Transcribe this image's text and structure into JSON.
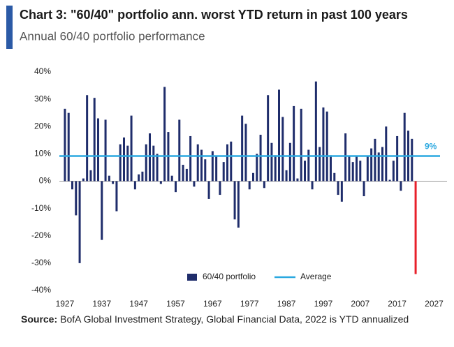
{
  "chart_data": {
    "type": "bar",
    "title": "Chart 3: \"60/40\" portfolio ann. worst YTD return in past 100 years",
    "subtitle": "Annual 60/40 portfolio performance",
    "source": {
      "label": "Source:",
      "text": "BofA Global Investment Strategy, Global Financial Data, 2022 is YTD annualized"
    },
    "x": [
      1927,
      1928,
      1929,
      1930,
      1931,
      1932,
      1933,
      1934,
      1935,
      1936,
      1937,
      1938,
      1939,
      1940,
      1941,
      1942,
      1943,
      1944,
      1945,
      1946,
      1947,
      1948,
      1949,
      1950,
      1951,
      1952,
      1953,
      1954,
      1955,
      1956,
      1957,
      1958,
      1959,
      1960,
      1961,
      1962,
      1963,
      1964,
      1965,
      1966,
      1967,
      1968,
      1969,
      1970,
      1971,
      1972,
      1973,
      1974,
      1975,
      1976,
      1977,
      1978,
      1979,
      1980,
      1981,
      1982,
      1983,
      1984,
      1985,
      1986,
      1987,
      1988,
      1989,
      1990,
      1991,
      1992,
      1993,
      1994,
      1995,
      1996,
      1997,
      1998,
      1999,
      2000,
      2001,
      2002,
      2003,
      2004,
      2005,
      2006,
      2007,
      2008,
      2009,
      2010,
      2011,
      2012,
      2013,
      2014,
      2015,
      2016,
      2017,
      2018,
      2019,
      2020,
      2021,
      2022
    ],
    "series": [
      {
        "name": "60/40 portfolio",
        "color": "#1f2d6b",
        "values": [
          26.5,
          25,
          -3,
          -12.5,
          -30,
          1,
          31.5,
          4,
          30.5,
          23,
          -21.5,
          22.5,
          2,
          -1,
          -11,
          13.5,
          16,
          13,
          24,
          -3,
          2.5,
          3.5,
          13.5,
          17.5,
          13,
          10,
          -1,
          34.5,
          18,
          2,
          -4,
          22.5,
          6,
          4.5,
          16.5,
          -2,
          13.5,
          11.5,
          8,
          -6.5,
          11,
          9,
          -5,
          7,
          13.5,
          14.5,
          -14,
          -17,
          24,
          21,
          -3,
          3,
          10,
          17,
          -2.5,
          31.5,
          14,
          9.5,
          33.5,
          23.5,
          4,
          14,
          27.5,
          1,
          26.5,
          7.5,
          11.5,
          -3,
          36.5,
          12.5,
          27,
          25.5,
          9.5,
          3,
          -5,
          -7.5,
          17.5,
          9,
          7,
          9,
          7.5,
          -5.5,
          9,
          12,
          15.5,
          10.5,
          12.5,
          20,
          0.5,
          7.5,
          16.5,
          -3.5,
          25,
          18.5,
          15.5,
          -34
        ],
        "colors": [
          "#1f2d6b",
          "#1f2d6b",
          "#1f2d6b",
          "#1f2d6b",
          "#1f2d6b",
          "#1f2d6b",
          "#1f2d6b",
          "#1f2d6b",
          "#1f2d6b",
          "#1f2d6b",
          "#1f2d6b",
          "#1f2d6b",
          "#1f2d6b",
          "#1f2d6b",
          "#1f2d6b",
          "#1f2d6b",
          "#1f2d6b",
          "#1f2d6b",
          "#1f2d6b",
          "#1f2d6b",
          "#1f2d6b",
          "#1f2d6b",
          "#1f2d6b",
          "#1f2d6b",
          "#1f2d6b",
          "#1f2d6b",
          "#1f2d6b",
          "#1f2d6b",
          "#1f2d6b",
          "#1f2d6b",
          "#1f2d6b",
          "#1f2d6b",
          "#1f2d6b",
          "#1f2d6b",
          "#1f2d6b",
          "#1f2d6b",
          "#1f2d6b",
          "#1f2d6b",
          "#1f2d6b",
          "#1f2d6b",
          "#1f2d6b",
          "#1f2d6b",
          "#1f2d6b",
          "#1f2d6b",
          "#1f2d6b",
          "#1f2d6b",
          "#1f2d6b",
          "#1f2d6b",
          "#1f2d6b",
          "#1f2d6b",
          "#1f2d6b",
          "#1f2d6b",
          "#1f2d6b",
          "#1f2d6b",
          "#1f2d6b",
          "#1f2d6b",
          "#1f2d6b",
          "#1f2d6b",
          "#1f2d6b",
          "#1f2d6b",
          "#1f2d6b",
          "#1f2d6b",
          "#1f2d6b",
          "#1f2d6b",
          "#1f2d6b",
          "#1f2d6b",
          "#1f2d6b",
          "#1f2d6b",
          "#1f2d6b",
          "#1f2d6b",
          "#1f2d6b",
          "#1f2d6b",
          "#1f2d6b",
          "#1f2d6b",
          "#1f2d6b",
          "#1f2d6b",
          "#1f2d6b",
          "#1f2d6b",
          "#1f2d6b",
          "#1f2d6b",
          "#1f2d6b",
          "#1f2d6b",
          "#1f2d6b",
          "#1f2d6b",
          "#1f2d6b",
          "#1f2d6b",
          "#1f2d6b",
          "#1f2d6b",
          "#1f2d6b",
          "#1f2d6b",
          "#1f2d6b",
          "#1f2d6b",
          "#1f2d6b",
          "#1f2d6b",
          "#1f2d6b",
          "#e8202a"
        ]
      }
    ],
    "average": {
      "name": "Average",
      "value": 9.2,
      "label": "9%",
      "color": "#2aa8e0"
    },
    "xlim": [
      1925.5,
      2030.5
    ],
    "xticks": [
      1927,
      1937,
      1947,
      1957,
      1967,
      1977,
      1987,
      1997,
      2007,
      2017,
      2027
    ],
    "ylim": [
      -40,
      40
    ],
    "yticks": [
      {
        "value": -40,
        "label": "-40%"
      },
      {
        "value": -30,
        "label": "-30%"
      },
      {
        "value": -20,
        "label": "-20%"
      },
      {
        "value": -10,
        "label": "-10%"
      },
      {
        "value": 0,
        "label": "0%"
      },
      {
        "value": 10,
        "label": "10%"
      },
      {
        "value": 20,
        "label": "20%"
      },
      {
        "value": 30,
        "label": "30%"
      },
      {
        "value": 40,
        "label": "40%"
      }
    ],
    "grid": false
  }
}
